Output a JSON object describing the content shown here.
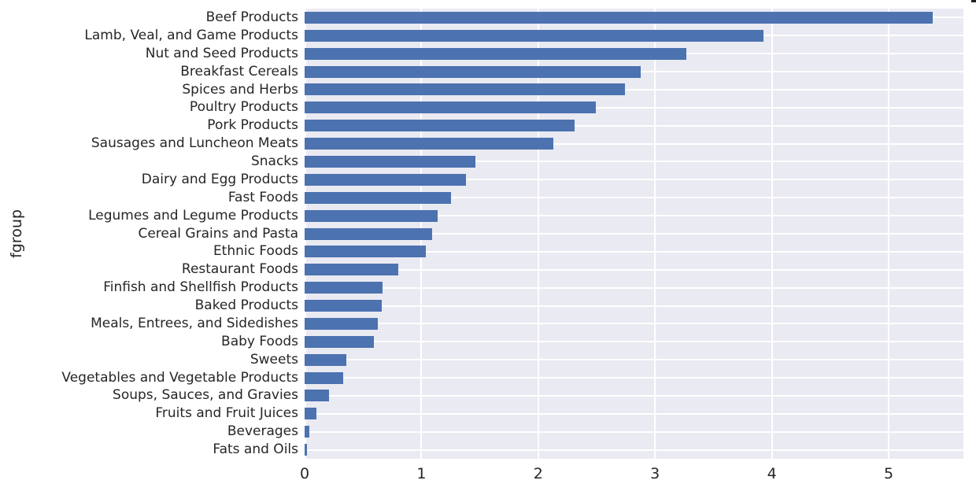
{
  "chart_data": {
    "type": "bar",
    "orientation": "horizontal",
    "title": "",
    "xlabel": "",
    "ylabel": "fgroup",
    "xlim": [
      0,
      5.64
    ],
    "x_ticks": [
      0,
      1,
      2,
      3,
      4,
      5
    ],
    "grid": true,
    "legend": false,
    "categories": [
      "Beef Products",
      "Lamb, Veal, and Game Products",
      "Nut and Seed Products",
      "Breakfast Cereals",
      "Spices and Herbs",
      "Poultry Products",
      "Pork Products",
      "Sausages and Luncheon Meats",
      "Snacks",
      "Dairy and Egg Products",
      "Fast Foods",
      "Legumes and Legume Products",
      "Cereal Grains and Pasta",
      "Ethnic Foods",
      "Restaurant Foods",
      "Finfish and Shellfish Products",
      "Baked Products",
      "Meals, Entrees, and Sidedishes",
      "Baby Foods",
      "Sweets",
      "Vegetables and Vegetable Products",
      "Soups, Sauces, and Gravies",
      "Fruits and Fruit Juices",
      "Beverages",
      "Fats and Oils"
    ],
    "values": [
      5.38,
      3.93,
      3.27,
      2.88,
      2.74,
      2.49,
      2.31,
      2.13,
      1.46,
      1.38,
      1.25,
      1.14,
      1.09,
      1.04,
      0.8,
      0.67,
      0.66,
      0.63,
      0.59,
      0.36,
      0.33,
      0.21,
      0.1,
      0.04,
      0.02
    ],
    "bar_color": "#4c72b0",
    "plot_bg_color": "#eaeaf2",
    "grid_color": "#ffffff",
    "text_color": "#262626",
    "figure_bg_color": "#ffffff",
    "corner_fragment_color": "#1f1f1f"
  }
}
